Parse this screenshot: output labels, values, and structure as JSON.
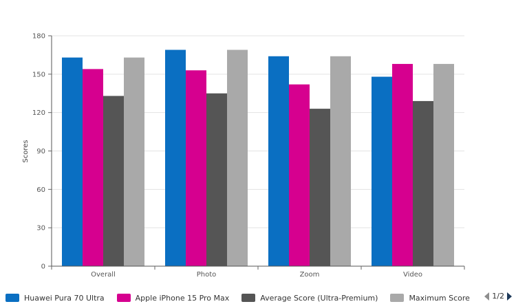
{
  "chart_data": {
    "type": "bar",
    "title": "",
    "xlabel": "",
    "ylabel": "Scores",
    "ylim": [
      0,
      180
    ],
    "yticks": [
      0,
      30,
      60,
      90,
      120,
      150,
      180
    ],
    "grid": true,
    "legend_position": "bottom",
    "categories": [
      "Overall",
      "Photo",
      "Zoom",
      "Video"
    ],
    "series": [
      {
        "name": "Huawei Pura 70 Ultra",
        "color": "#0a6fc2",
        "values": [
          163,
          169,
          164,
          148
        ]
      },
      {
        "name": "Apple iPhone 15 Pro Max",
        "color": "#d6008f",
        "values": [
          154,
          153,
          142,
          158
        ]
      },
      {
        "name": "Average Score (Ultra-Premium)",
        "color": "#555555",
        "values": [
          133,
          135,
          123,
          129
        ]
      },
      {
        "name": "Maximum Score",
        "color": "#a9a9a9",
        "values": [
          163,
          169,
          164,
          158
        ]
      }
    ]
  },
  "legend_nav": {
    "page_label": "1/2"
  }
}
